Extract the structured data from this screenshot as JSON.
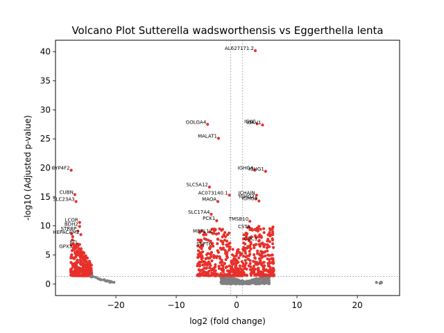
{
  "chart_data": {
    "type": "scatter",
    "title": "Volcano Plot Sutterella wadsworthensis vs Eggerthella lenta",
    "xlabel": "log2 (fold change)",
    "ylabel": "-log10 (Adjusted p-value)",
    "xlim": [
      -30,
      27
    ],
    "ylim": [
      -2,
      42
    ],
    "x_ticks": [
      -20,
      -10,
      0,
      10,
      20
    ],
    "y_ticks": [
      0,
      5,
      10,
      15,
      20,
      25,
      30,
      35,
      40
    ],
    "grid": false,
    "threshold_lines": {
      "x": [
        -1,
        1
      ],
      "y": [
        1.3
      ]
    },
    "colors": {
      "significant": "#e8302a",
      "not_significant": "#808080",
      "threshold": "#808080"
    },
    "labeled_points": [
      {
        "label": "AL627171.2",
        "x": 3.1,
        "y": 40.2
      },
      {
        "label": "GOLGA4",
        "x": -4.8,
        "y": 27.5
      },
      {
        "label": "IGKC",
        "x": 3.4,
        "y": 27.6
      },
      {
        "label": "IGKV1",
        "x": 4.3,
        "y": 27.4
      },
      {
        "label": "MALAT1",
        "x": -3.0,
        "y": 25.1
      },
      {
        "label": "CYP4F2",
        "x": -27.4,
        "y": 19.6
      },
      {
        "label": "IGHG4",
        "x": 3.0,
        "y": 19.6
      },
      {
        "label": "IGHG1",
        "x": 4.8,
        "y": 19.4
      },
      {
        "label": "SLC5A12",
        "x": -4.5,
        "y": 16.7
      },
      {
        "label": "CUBN",
        "x": -26.8,
        "y": 15.4
      },
      {
        "label": "AC073140.1",
        "x": -1.2,
        "y": 15.3
      },
      {
        "label": "JCHAIN",
        "x": 3.3,
        "y": 15.3
      },
      {
        "label": "IGHG2",
        "x": 3.2,
        "y": 14.7
      },
      {
        "label": "IGHG3",
        "x": 3.7,
        "y": 14.3
      },
      {
        "label": "MAOA",
        "x": -3.1,
        "y": 14.2
      },
      {
        "label": "SLC23A3",
        "x": -26.6,
        "y": 14.2
      },
      {
        "label": "SLC17A4",
        "x": -4.2,
        "y": 12.0
      },
      {
        "label": "PCK1",
        "x": -3.3,
        "y": 10.9
      },
      {
        "label": "TMSB10",
        "x": 2.2,
        "y": 10.8
      },
      {
        "label": "LCOR",
        "x": -26.0,
        "y": 10.6
      },
      {
        "label": "BDH2",
        "x": -26.0,
        "y": 9.9
      },
      {
        "label": "STRBP",
        "x": -26.3,
        "y": 9.1
      },
      {
        "label": "HEPACAM2",
        "x": -25.8,
        "y": 8.5
      },
      {
        "label": "MRPL12",
        "x": -3.8,
        "y": 8.7
      },
      {
        "label": "CSTA",
        "x": 2.5,
        "y": 9.5
      },
      {
        "label": "CDC1",
        "x": 3.7,
        "y": 7.4
      },
      {
        "label": "SEPT6",
        "x": -3.9,
        "y": 6.5
      },
      {
        "label": "FTL",
        "x": -26.0,
        "y": 6.8
      },
      {
        "label": "GPX3",
        "x": -27.0,
        "y": 6.1
      }
    ],
    "clusters": [
      {
        "name": "left-sig",
        "x": [
          -27.5,
          -24.0
        ],
        "y": [
          1.4,
          9.0
        ],
        "count": 320,
        "color": "significant"
      },
      {
        "name": "left-tail",
        "x": [
          -24.2,
          -20.0
        ],
        "y": [
          0.1,
          1.3
        ],
        "count": 22,
        "color": "not_significant"
      },
      {
        "name": "center-nonsig",
        "x": [
          -2.6,
          5.5
        ],
        "y": [
          0.0,
          1.3
        ],
        "count": 380,
        "color": "not_significant"
      },
      {
        "name": "center-left-sig",
        "x": [
          -6.5,
          -1.0
        ],
        "y": [
          1.4,
          9.5
        ],
        "count": 230,
        "color": "significant"
      },
      {
        "name": "center-right-sig",
        "x": [
          1.0,
          6.2
        ],
        "y": [
          1.4,
          10.0
        ],
        "count": 260,
        "color": "significant"
      },
      {
        "name": "center-mid-sig",
        "x": [
          -1.0,
          1.0
        ],
        "y": [
          1.4,
          6.0
        ],
        "count": 90,
        "color": "significant"
      },
      {
        "name": "right-far",
        "x": [
          23.0,
          24.6
        ],
        "y": [
          0.1,
          0.45
        ],
        "count": 4,
        "color": "not_significant"
      }
    ]
  }
}
